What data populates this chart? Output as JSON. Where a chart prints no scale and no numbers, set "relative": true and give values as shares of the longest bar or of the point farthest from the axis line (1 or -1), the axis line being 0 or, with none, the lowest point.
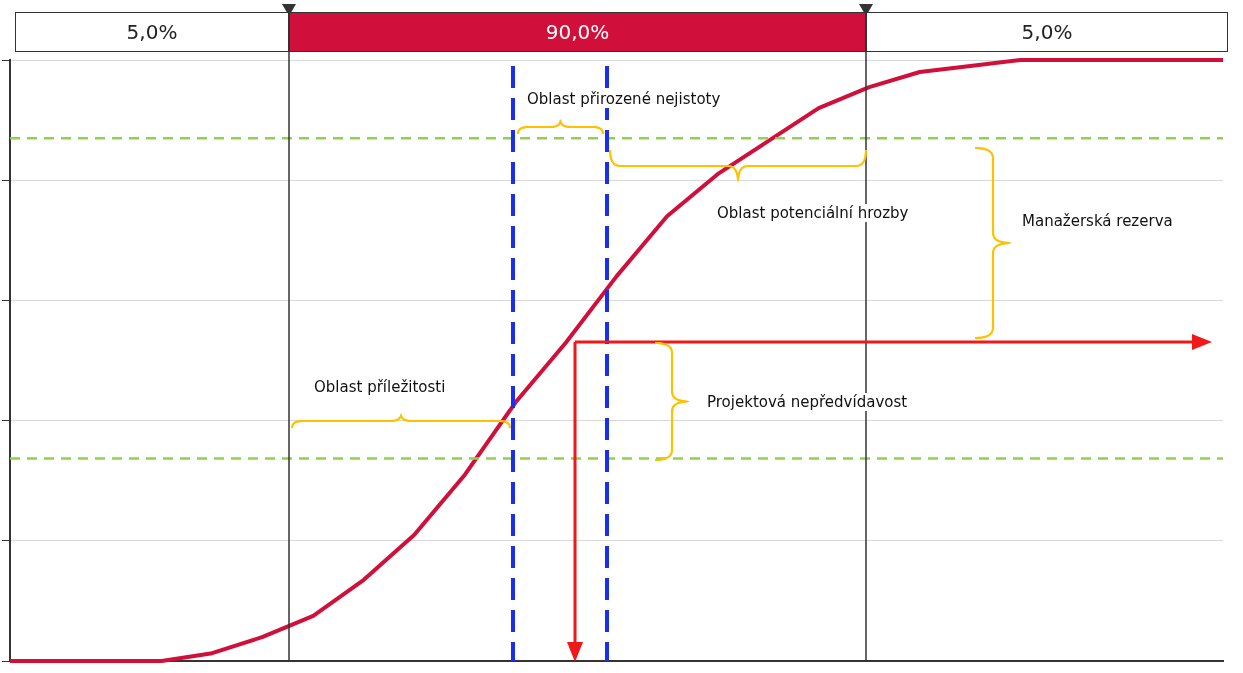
{
  "chart_data": {
    "type": "line",
    "relative": true,
    "categories": [
      null,
      null,
      null,
      null,
      null,
      null,
      null,
      null,
      null,
      null,
      null,
      null,
      null,
      null,
      null,
      null,
      null,
      null,
      null,
      null,
      null,
      null,
      null,
      null,
      null
    ],
    "series": [
      {
        "color": "#d0103a",
        "values": [
          0,
          0,
          0,
          0,
          0.013,
          0.04,
          0.075,
          0.135,
          0.21,
          0.31,
          0.43,
          0.53,
          0.64,
          0.74,
          0.81,
          0.865,
          0.92,
          0.955,
          0.98,
          0.99,
          1,
          1,
          1,
          1,
          1
        ]
      }
    ],
    "ref_lines": [
      {
        "axis": "y",
        "value": 0.87,
        "color": "#92d050",
        "line_style": "dashed"
      },
      {
        "axis": "y",
        "value": 0.337,
        "color": "#92d050",
        "line_style": "dashed"
      }
    ],
    "annotations": [
      "5,0%",
      "90,0%",
      "5,0%",
      "Oblast přirozené nejistoty",
      "Oblast potenciální hrozby",
      "Manažerská rezerva",
      "Projektová nepředvídavost",
      "Oblast příležitosti"
    ],
    "grid": "y",
    "legend": false,
    "marker": "none",
    "line_style": "solid"
  }
}
